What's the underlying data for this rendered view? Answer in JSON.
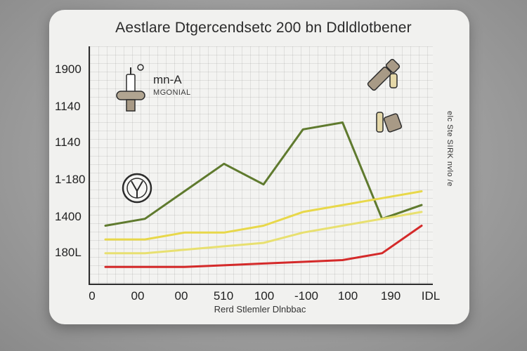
{
  "chart_data": {
    "type": "line",
    "title": "Aestlare Dtgercendsetc 200 bn Ddldlotbener",
    "xlabel": "Rerd Stlemler Dlnbbac",
    "ylabel": "elc Ste SIRK nvlo /e",
    "x_ticks": [
      "0",
      "00",
      "00",
      "510",
      "100",
      "-100",
      "100",
      "190",
      "IDL"
    ],
    "y_ticks": [
      "1900",
      "1140",
      "1140",
      "1-180",
      "1400",
      "180L"
    ],
    "legend": {
      "main": "mn-A",
      "sub": "MGONIAL"
    },
    "x": [
      0,
      1,
      2,
      3,
      4,
      5,
      6,
      7,
      8
    ],
    "series": [
      {
        "color": "#5f7a2e",
        "values": [
          1400,
          1420,
          1500,
          1580,
          1520,
          1680,
          1700,
          1420,
          1460
        ]
      },
      {
        "color": "#e8d84a",
        "values": [
          1360,
          1360,
          1380,
          1380,
          1400,
          1440,
          1460,
          1480,
          1500
        ]
      },
      {
        "color": "#e8e070",
        "values": [
          1320,
          1320,
          1330,
          1340,
          1350,
          1380,
          1400,
          1420,
          1440
        ]
      },
      {
        "color": "#d42a2a",
        "values": [
          1280,
          1280,
          1280,
          1285,
          1290,
          1295,
          1300,
          1320,
          1400
        ]
      }
    ]
  },
  "colors": {
    "card": "#f1f1ef",
    "axis": "#2c2c2c",
    "icon_fill": "#a89a86"
  }
}
